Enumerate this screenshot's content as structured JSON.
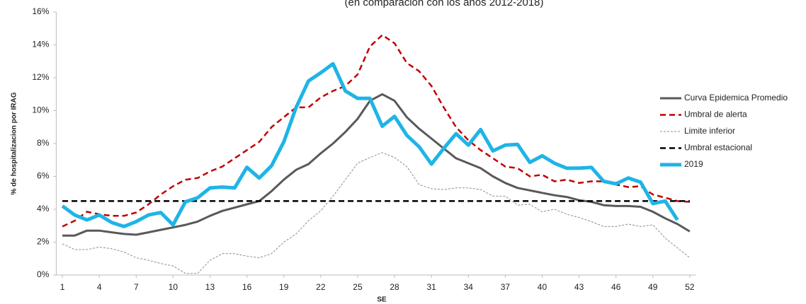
{
  "chart_data": {
    "type": "line",
    "subtitle": "(en comparación con los años 2012-2018)",
    "x_label": "SE",
    "y_label": "% de hospitalizacion por IRAG",
    "x": [
      1,
      2,
      3,
      4,
      5,
      6,
      7,
      8,
      9,
      10,
      11,
      12,
      13,
      14,
      15,
      16,
      17,
      18,
      19,
      20,
      21,
      22,
      23,
      24,
      25,
      26,
      27,
      28,
      29,
      30,
      31,
      32,
      33,
      34,
      35,
      36,
      37,
      38,
      39,
      40,
      41,
      42,
      43,
      44,
      45,
      46,
      47,
      48,
      49,
      50,
      51,
      52
    ],
    "xlim": [
      0.5,
      52.5
    ],
    "xticks": [
      1,
      4,
      7,
      10,
      13,
      16,
      19,
      22,
      25,
      28,
      31,
      34,
      37,
      40,
      43,
      46,
      49,
      52
    ],
    "ylim": [
      0,
      16
    ],
    "yticks": [
      {
        "value": 0,
        "label": "0%"
      },
      {
        "value": 2,
        "label": "2%"
      },
      {
        "value": 4,
        "label": "4%"
      },
      {
        "value": 6,
        "label": "6%"
      },
      {
        "value": 8,
        "label": "8%"
      },
      {
        "value": 10,
        "label": "10%"
      },
      {
        "value": 12,
        "label": "12%"
      },
      {
        "value": 14,
        "label": "14%"
      },
      {
        "value": 16,
        "label": "16%"
      }
    ],
    "grid": false,
    "legend": "right",
    "series": [
      {
        "name": "Curva Epidemica Promedio",
        "color": "#595959",
        "line_style": "solid",
        "values": [
          2.4,
          2.4,
          2.7,
          2.7,
          2.6,
          2.5,
          2.45,
          2.6,
          2.75,
          2.9,
          3.05,
          3.25,
          3.6,
          3.9,
          4.1,
          4.3,
          4.5,
          5.1,
          5.8,
          6.4,
          6.75,
          7.4,
          8.0,
          8.7,
          9.5,
          10.6,
          11.0,
          10.6,
          9.6,
          8.9,
          8.3,
          7.7,
          7.1,
          6.8,
          6.5,
          6.0,
          5.6,
          5.3,
          5.15,
          5.0,
          4.85,
          4.75,
          4.55,
          4.45,
          4.25,
          4.2,
          4.2,
          4.15,
          3.85,
          3.45,
          3.1,
          2.65
        ]
      },
      {
        "name": "Umbral de alerta",
        "color": "#c00000",
        "line_style": "dashed",
        "values": [
          2.95,
          3.3,
          3.85,
          3.7,
          3.6,
          3.6,
          3.8,
          4.3,
          4.9,
          5.4,
          5.8,
          5.9,
          6.3,
          6.6,
          7.1,
          7.6,
          8.1,
          9.0,
          9.6,
          10.2,
          10.2,
          10.8,
          11.2,
          11.5,
          12.2,
          13.9,
          14.6,
          14.1,
          12.9,
          12.4,
          11.5,
          10.2,
          9.0,
          8.2,
          7.6,
          7.1,
          6.6,
          6.5,
          6.0,
          6.1,
          5.7,
          5.8,
          5.6,
          5.7,
          5.7,
          5.5,
          5.35,
          5.4,
          4.9,
          4.7,
          4.5,
          4.45
        ]
      },
      {
        "name": "Limite inferior",
        "color": "#8c8c8c",
        "line_style": "dotted",
        "values": [
          1.9,
          1.55,
          1.55,
          1.7,
          1.6,
          1.4,
          1.05,
          0.9,
          0.7,
          0.55,
          0.1,
          0.1,
          0.9,
          1.3,
          1.3,
          1.15,
          1.05,
          1.3,
          2.0,
          2.5,
          3.3,
          3.9,
          4.8,
          5.8,
          6.8,
          7.15,
          7.45,
          7.15,
          6.6,
          5.5,
          5.25,
          5.2,
          5.3,
          5.3,
          5.2,
          4.8,
          4.8,
          4.25,
          4.3,
          3.85,
          4.0,
          3.7,
          3.5,
          3.25,
          2.95,
          2.95,
          3.1,
          2.95,
          3.05,
          2.25,
          1.65,
          1.05
        ]
      },
      {
        "name": "Umbral estacional",
        "color": "#000000",
        "line_style": "dashed",
        "values": [
          4.5,
          4.5,
          4.5,
          4.5,
          4.5,
          4.5,
          4.5,
          4.5,
          4.5,
          4.5,
          4.5,
          4.5,
          4.5,
          4.5,
          4.5,
          4.5,
          4.5,
          4.5,
          4.5,
          4.5,
          4.5,
          4.5,
          4.5,
          4.5,
          4.5,
          4.5,
          4.5,
          4.5,
          4.5,
          4.5,
          4.5,
          4.5,
          4.5,
          4.5,
          4.5,
          4.5,
          4.5,
          4.5,
          4.5,
          4.5,
          4.5,
          4.5,
          4.5,
          4.5,
          4.5,
          4.5,
          4.5,
          4.5,
          4.5,
          4.5,
          4.5,
          4.5
        ]
      },
      {
        "name": "2019",
        "color": "#1fb4e6",
        "line_style": "bold",
        "values": [
          4.2,
          3.65,
          3.35,
          3.65,
          3.2,
          2.95,
          3.25,
          3.65,
          3.8,
          3.05,
          4.45,
          4.7,
          5.3,
          5.35,
          5.3,
          6.55,
          5.9,
          6.65,
          8.1,
          10.2,
          11.8,
          12.3,
          12.85,
          11.2,
          10.75,
          10.75,
          9.05,
          9.65,
          8.5,
          7.8,
          6.75,
          7.7,
          8.6,
          7.9,
          8.85,
          7.55,
          7.9,
          7.95,
          6.85,
          7.25,
          6.8,
          6.5,
          6.5,
          6.55,
          5.7,
          5.55,
          5.9,
          5.65,
          4.35,
          4.5,
          3.35,
          null
        ]
      }
    ]
  }
}
